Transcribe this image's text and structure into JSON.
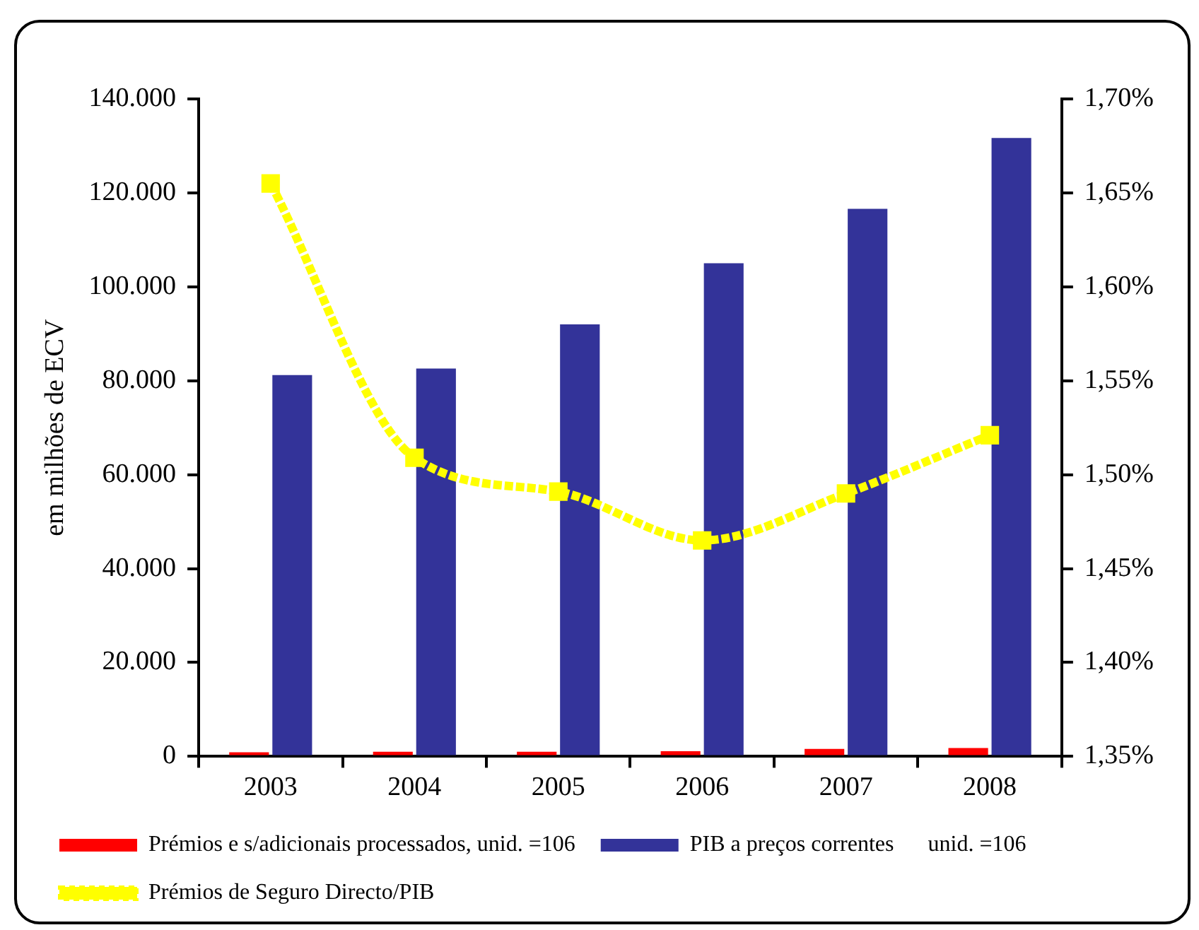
{
  "chart_data": {
    "type": "bar",
    "categories": [
      "2003",
      "2004",
      "2005",
      "2006",
      "2007",
      "2008"
    ],
    "series": [
      {
        "name": "Prémios e s/adicionais processados, unid. =106",
        "color": "#ff0000",
        "values": [
          900,
          1000,
          1000,
          1100,
          1600,
          1800
        ]
      },
      {
        "name": "PIB a preços correntes      unid. =106",
        "color": "#333399",
        "values": [
          81200,
          82600,
          92000,
          105000,
          116600,
          131700
        ]
      },
      {
        "name": "Prémios de Seguro Directo/PIB",
        "type": "line",
        "axis": "y2",
        "color": "#ffff00",
        "values": [
          1.655,
          1.509,
          1.491,
          1.465,
          1.49,
          1.521
        ]
      }
    ],
    "ylabel": "em milhões de ECV",
    "ylim": [
      0,
      140000
    ],
    "yticks": [
      0,
      {
        "value": 20000,
        "label": "20.000"
      },
      {
        "value": 40000,
        "label": "40.000"
      },
      {
        "value": 60000,
        "label": "60.000"
      },
      {
        "value": 80000,
        "label": "80.000"
      },
      {
        "value": 100000,
        "label": "100.000"
      },
      {
        "value": 120000,
        "label": "120.000"
      },
      {
        "value": 140000,
        "label": "140.000"
      }
    ],
    "y2lim": [
      1.35,
      1.7
    ],
    "y2ticks": [
      {
        "value": 1.35,
        "label": "1,35%"
      },
      {
        "value": 1.4,
        "label": "1,40%"
      },
      {
        "value": 1.45,
        "label": "1,45%"
      },
      {
        "value": 1.5,
        "label": "1,50%"
      },
      {
        "value": 1.55,
        "label": "1,55%"
      },
      {
        "value": 1.6,
        "label": "1,60%"
      },
      {
        "value": 1.65,
        "label": "1,65%"
      },
      {
        "value": 1.7,
        "label": "1,70%"
      }
    ],
    "grid": false,
    "legend": "bottom",
    "marker": "square",
    "line_style": "dashed"
  }
}
